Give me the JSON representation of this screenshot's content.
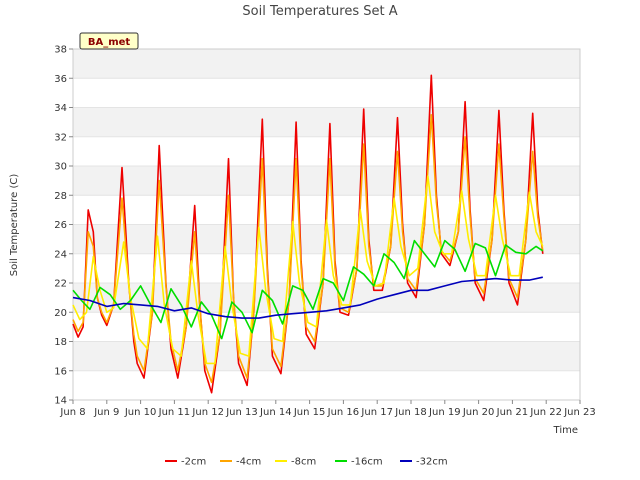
{
  "chart_data": {
    "type": "line",
    "title": "Soil Temperatures Set A",
    "xlabel": "Time",
    "ylabel": "Soil Temperature (C)",
    "site_label": "BA_met",
    "xlim": [
      8,
      23
    ],
    "ylim": [
      14,
      38
    ],
    "x_ticks": [
      8,
      9,
      10,
      11,
      12,
      13,
      14,
      15,
      16,
      17,
      18,
      19,
      20,
      21,
      22,
      23
    ],
    "x_tick_labels": [
      "Jun 8",
      "Jun 9",
      "Jun 10",
      "Jun 11",
      "Jun 12",
      "Jun 13",
      "Jun 14",
      "Jun 15",
      "Jun 16",
      "Jun 17",
      "Jun 18",
      "Jun 19",
      "Jun 20",
      "Jun 21",
      "Jun 22",
      "Jun 23"
    ],
    "y_ticks": [
      14,
      16,
      18,
      20,
      22,
      24,
      26,
      28,
      30,
      32,
      34,
      36,
      38
    ],
    "y_tick_labels": [
      "14",
      "16",
      "18",
      "20",
      "22",
      "24",
      "26",
      "28",
      "30",
      "32",
      "34",
      "36",
      "38"
    ],
    "grid": "horizontal bands",
    "legend_position": "bottom",
    "series": [
      {
        "name": "-2cm",
        "color": "#ee0000",
        "x": [
          8.0,
          8.15,
          8.3,
          8.45,
          8.6,
          8.72,
          8.85,
          9.0,
          9.2,
          9.45,
          9.65,
          9.8,
          9.9,
          10.1,
          10.35,
          10.55,
          10.75,
          10.9,
          11.1,
          11.35,
          11.6,
          11.75,
          11.9,
          12.1,
          12.35,
          12.6,
          12.75,
          12.9,
          13.15,
          13.35,
          13.6,
          13.75,
          13.9,
          14.15,
          14.4,
          14.6,
          14.75,
          14.9,
          15.15,
          15.4,
          15.6,
          15.75,
          15.9,
          16.15,
          16.4,
          16.6,
          16.75,
          16.9,
          17.15,
          17.4,
          17.6,
          17.75,
          17.9,
          18.15,
          18.4,
          18.6,
          18.75,
          18.9,
          19.15,
          19.4,
          19.6,
          19.75,
          19.9,
          20.15,
          20.4,
          20.6,
          20.75,
          20.9,
          21.15,
          21.4,
          21.6,
          21.75,
          21.9
        ],
        "y": [
          19.2,
          18.3,
          19.0,
          27.0,
          25.5,
          21.0,
          19.8,
          19.1,
          20.5,
          29.9,
          22.0,
          18.0,
          16.5,
          15.5,
          20.0,
          31.4,
          22.0,
          17.5,
          15.5,
          19.0,
          27.3,
          20.5,
          16.0,
          14.5,
          18.5,
          30.5,
          21.0,
          16.5,
          15.0,
          20.0,
          33.2,
          23.0,
          17.0,
          15.8,
          21.0,
          33.0,
          23.5,
          18.5,
          17.5,
          22.0,
          32.9,
          23.5,
          20.0,
          19.8,
          23.0,
          33.9,
          25.0,
          21.5,
          21.5,
          24.5,
          33.3,
          26.0,
          22.0,
          21.0,
          26.0,
          36.2,
          28.0,
          24.0,
          23.2,
          25.5,
          34.4,
          27.0,
          22.0,
          20.8,
          25.0,
          33.8,
          27.0,
          22.0,
          20.5,
          25.0,
          33.6,
          27.0,
          24.0
        ]
      },
      {
        "name": "-4cm",
        "color": "#ffa500",
        "x": [
          8.0,
          8.15,
          8.3,
          8.45,
          8.6,
          8.72,
          8.85,
          9.0,
          9.2,
          9.45,
          9.65,
          9.8,
          9.9,
          10.1,
          10.35,
          10.55,
          10.75,
          10.9,
          11.1,
          11.35,
          11.6,
          11.75,
          11.9,
          12.1,
          12.35,
          12.6,
          12.75,
          12.9,
          13.15,
          13.35,
          13.6,
          13.75,
          13.9,
          14.15,
          14.4,
          14.6,
          14.75,
          14.9,
          15.15,
          15.4,
          15.6,
          15.75,
          15.9,
          16.15,
          16.4,
          16.6,
          16.75,
          16.9,
          17.15,
          17.4,
          17.6,
          17.75,
          17.9,
          18.15,
          18.4,
          18.6,
          18.75,
          18.9,
          19.15,
          19.4,
          19.6,
          19.75,
          19.9,
          20.15,
          20.4,
          20.6,
          20.75,
          20.9,
          21.15,
          21.4,
          21.6,
          21.75,
          21.9
        ],
        "y": [
          19.5,
          18.7,
          19.3,
          25.5,
          24.5,
          21.0,
          20.0,
          19.3,
          20.5,
          27.8,
          21.8,
          18.5,
          17.0,
          16.0,
          20.0,
          29.0,
          21.8,
          18.0,
          16.0,
          19.0,
          25.5,
          20.3,
          16.5,
          15.2,
          18.5,
          28.0,
          21.0,
          17.0,
          15.5,
          20.0,
          30.5,
          22.5,
          17.5,
          16.3,
          21.0,
          30.5,
          23.0,
          19.0,
          18.0,
          22.0,
          30.5,
          23.0,
          20.3,
          20.0,
          23.0,
          31.5,
          24.5,
          21.8,
          21.8,
          24.5,
          31.0,
          25.5,
          22.3,
          21.5,
          26.0,
          33.5,
          27.5,
          24.2,
          23.5,
          25.5,
          32.0,
          26.5,
          22.3,
          21.3,
          25.0,
          31.5,
          26.5,
          22.3,
          21.0,
          25.0,
          31.0,
          26.5,
          24.2
        ]
      },
      {
        "name": "-8cm",
        "color": "#ffee00",
        "x": [
          8.0,
          8.2,
          8.4,
          8.6,
          8.8,
          9.0,
          9.2,
          9.5,
          9.7,
          9.95,
          10.2,
          10.5,
          10.7,
          10.95,
          11.2,
          11.5,
          11.7,
          11.95,
          12.2,
          12.5,
          12.7,
          12.95,
          13.2,
          13.5,
          13.7,
          13.95,
          14.2,
          14.5,
          14.7,
          14.95,
          15.2,
          15.5,
          15.7,
          15.95,
          16.2,
          16.5,
          16.7,
          16.95,
          17.2,
          17.5,
          17.7,
          17.95,
          18.2,
          18.5,
          18.7,
          18.95,
          19.2,
          19.5,
          19.7,
          19.95,
          20.2,
          20.5,
          20.7,
          20.95,
          21.2,
          21.5,
          21.7,
          21.9
        ],
        "y": [
          20.5,
          19.5,
          20.0,
          23.8,
          21.5,
          20.0,
          20.3,
          24.8,
          21.0,
          18.2,
          17.5,
          25.2,
          20.5,
          17.5,
          17.0,
          23.5,
          19.8,
          16.5,
          16.5,
          24.5,
          20.5,
          17.2,
          17.0,
          25.8,
          21.5,
          18.2,
          18.0,
          26.2,
          22.0,
          19.3,
          19.0,
          26.3,
          22.5,
          20.5,
          20.5,
          27.0,
          23.5,
          21.8,
          22.0,
          27.8,
          24.5,
          22.5,
          23.0,
          29.3,
          25.5,
          24.0,
          24.0,
          28.3,
          25.0,
          22.5,
          22.5,
          28.0,
          25.0,
          22.5,
          22.5,
          28.2,
          25.5,
          24.5
        ]
      },
      {
        "name": "-16cm",
        "color": "#00dd00",
        "x": [
          8.0,
          8.25,
          8.5,
          8.8,
          9.1,
          9.4,
          9.7,
          10.0,
          10.3,
          10.6,
          10.9,
          11.2,
          11.5,
          11.8,
          12.1,
          12.4,
          12.7,
          13.0,
          13.3,
          13.6,
          13.9,
          14.2,
          14.5,
          14.8,
          15.1,
          15.4,
          15.7,
          16.0,
          16.3,
          16.6,
          16.9,
          17.2,
          17.5,
          17.8,
          18.1,
          18.4,
          18.7,
          19.0,
          19.3,
          19.6,
          19.9,
          20.2,
          20.5,
          20.8,
          21.1,
          21.4,
          21.7,
          21.9
        ],
        "y": [
          21.5,
          20.8,
          20.2,
          21.7,
          21.2,
          20.2,
          20.8,
          21.8,
          20.5,
          19.3,
          21.6,
          20.5,
          19.0,
          20.7,
          19.8,
          18.2,
          20.7,
          20.0,
          18.6,
          21.5,
          20.8,
          19.2,
          21.8,
          21.5,
          20.2,
          22.3,
          22.0,
          20.8,
          23.1,
          22.6,
          21.8,
          24.0,
          23.4,
          22.3,
          24.9,
          24.0,
          23.1,
          24.9,
          24.3,
          22.8,
          24.7,
          24.4,
          22.5,
          24.6,
          24.1,
          24.0,
          24.5,
          24.2
        ]
      },
      {
        "name": "-32cm",
        "color": "#0000bb",
        "x": [
          8.0,
          8.5,
          9.0,
          9.5,
          10.0,
          10.5,
          11.0,
          11.5,
          12.0,
          12.5,
          13.0,
          13.5,
          14.0,
          14.5,
          15.0,
          15.5,
          16.0,
          16.5,
          17.0,
          17.5,
          18.0,
          18.5,
          19.0,
          19.5,
          20.0,
          20.5,
          21.0,
          21.5,
          21.9
        ],
        "y": [
          21.0,
          20.8,
          20.4,
          20.6,
          20.5,
          20.4,
          20.1,
          20.3,
          19.9,
          19.7,
          19.6,
          19.6,
          19.8,
          19.9,
          20.0,
          20.1,
          20.3,
          20.5,
          20.9,
          21.2,
          21.5,
          21.5,
          21.8,
          22.1,
          22.2,
          22.3,
          22.2,
          22.2,
          22.4
        ]
      }
    ]
  }
}
